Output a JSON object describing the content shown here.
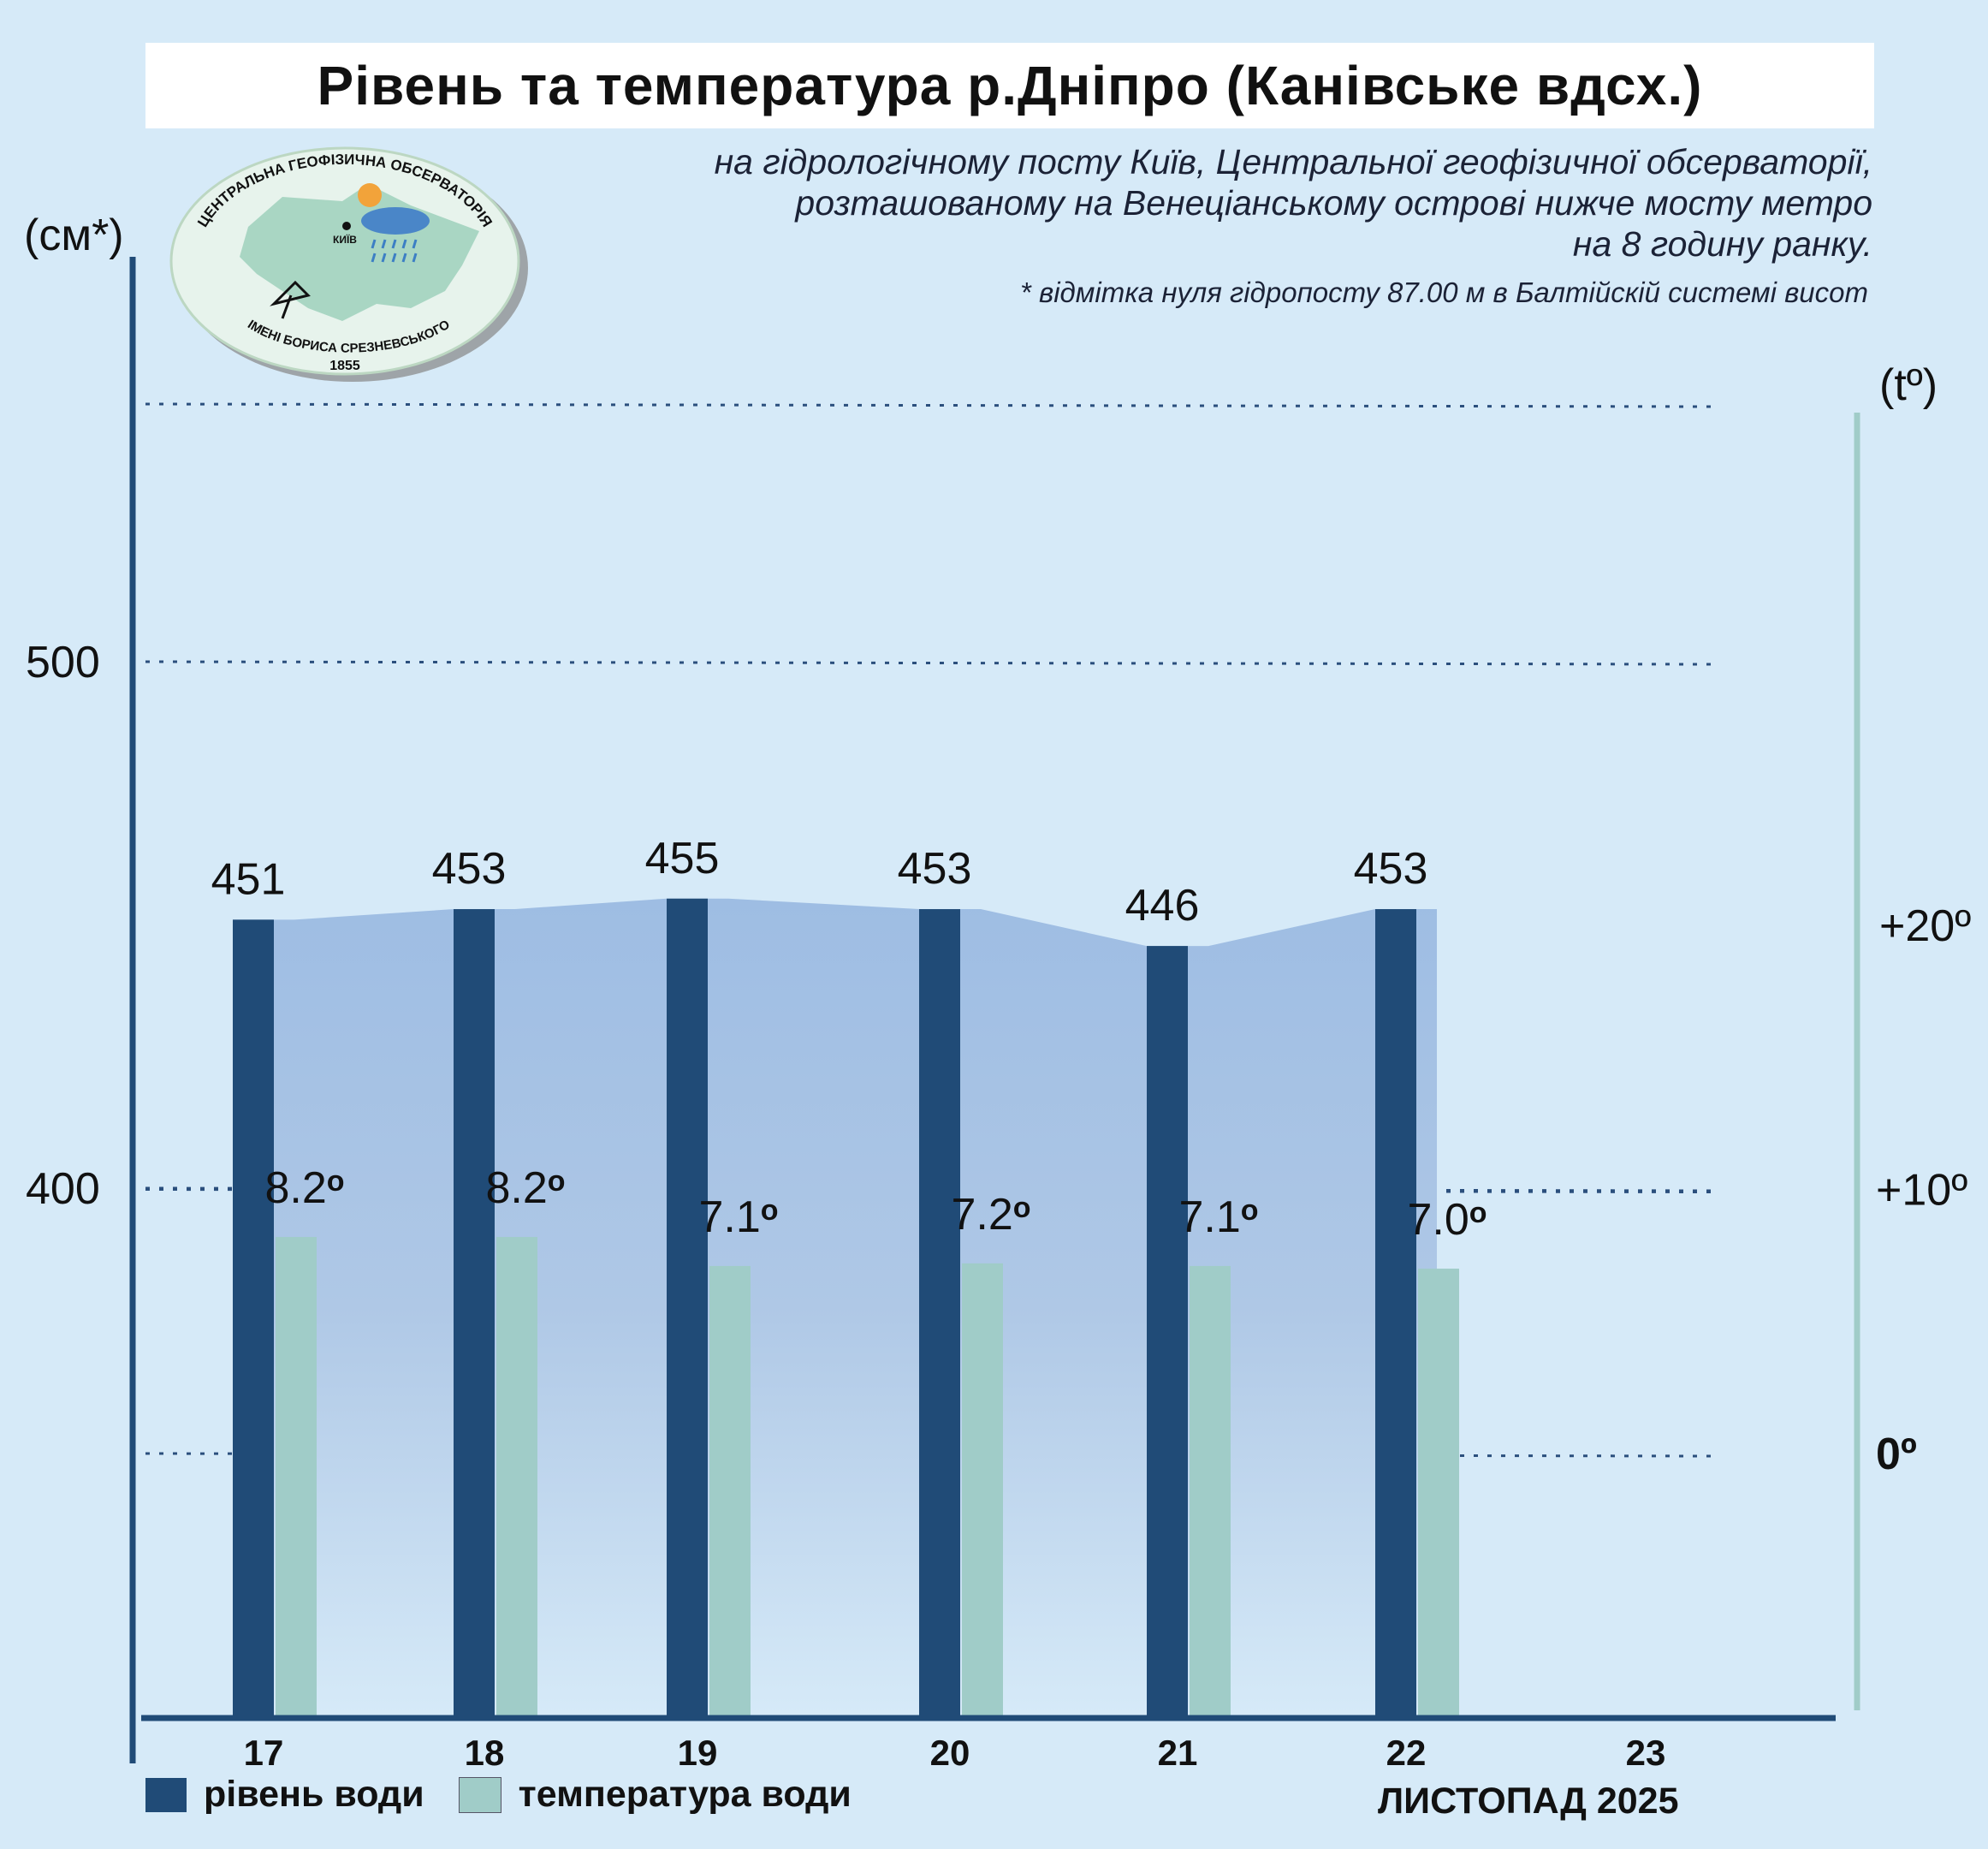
{
  "title": "Рівень та температура р.Дніпро (Канівське вдсх.)",
  "subtitle_lines": [
    "на гідрологічному посту Київ, Центральної геофізичної обсерваторії,",
    "розташованому на Венеціанському острові нижче мосту метро",
    "на 8 годину ранку."
  ],
  "footnote": "* відмітка нуля гідропосту 87.00 м в Балтійскій системі висот",
  "logo": {
    "top_text": "ЦЕНТРАЛЬНА ГЕОФІЗИЧНА ОБСЕРВАТОРІЯ",
    "bottom_text": "ІМЕНІ БОРИСА СРЕЗНЕВСЬКОГО",
    "year": "1855",
    "city": "КИЇВ"
  },
  "legend": {
    "level_label": "рівень води",
    "temp_label": "температура води"
  },
  "month_label": "ЛИСТОПАД 2025",
  "colors": {
    "level_bar": "#204b77",
    "temp_bar": "#a0ccc8",
    "area_fill": "#9ebde3",
    "background": "#d6eaf8",
    "axis_left": "#204b77",
    "axis_right": "#a0ccc8"
  },
  "chart_data": {
    "type": "bar",
    "categories": [
      "17",
      "18",
      "19",
      "20",
      "21",
      "22",
      "23"
    ],
    "series": [
      {
        "name": "рівень води",
        "unit": "см",
        "axis": "left",
        "values": [
          451,
          453,
          455,
          453,
          446,
          453,
          null
        ]
      },
      {
        "name": "температура води",
        "unit": "°",
        "axis": "right",
        "values": [
          8.2,
          8.2,
          7.1,
          7.2,
          7.1,
          7.0,
          null
        ]
      }
    ],
    "level_labels": [
      "451",
      "453",
      "455",
      "453",
      "446",
      "453"
    ],
    "temp_labels": [
      "8.2",
      "8.2",
      "7.1",
      "7.2",
      "7.1",
      "7.0"
    ],
    "temp_degree_sign": "о",
    "left_axis": {
      "unit_label": "(см*)",
      "ticks": [
        400,
        500
      ],
      "tick_labels": [
        "400",
        "500"
      ]
    },
    "right_axis": {
      "unit_label": "(tº)",
      "ticks": [
        0,
        10,
        20
      ],
      "tick_labels": [
        "0º",
        "+10º",
        "+20º"
      ]
    },
    "grid": "dotted",
    "legend_position": "bottom-left"
  }
}
